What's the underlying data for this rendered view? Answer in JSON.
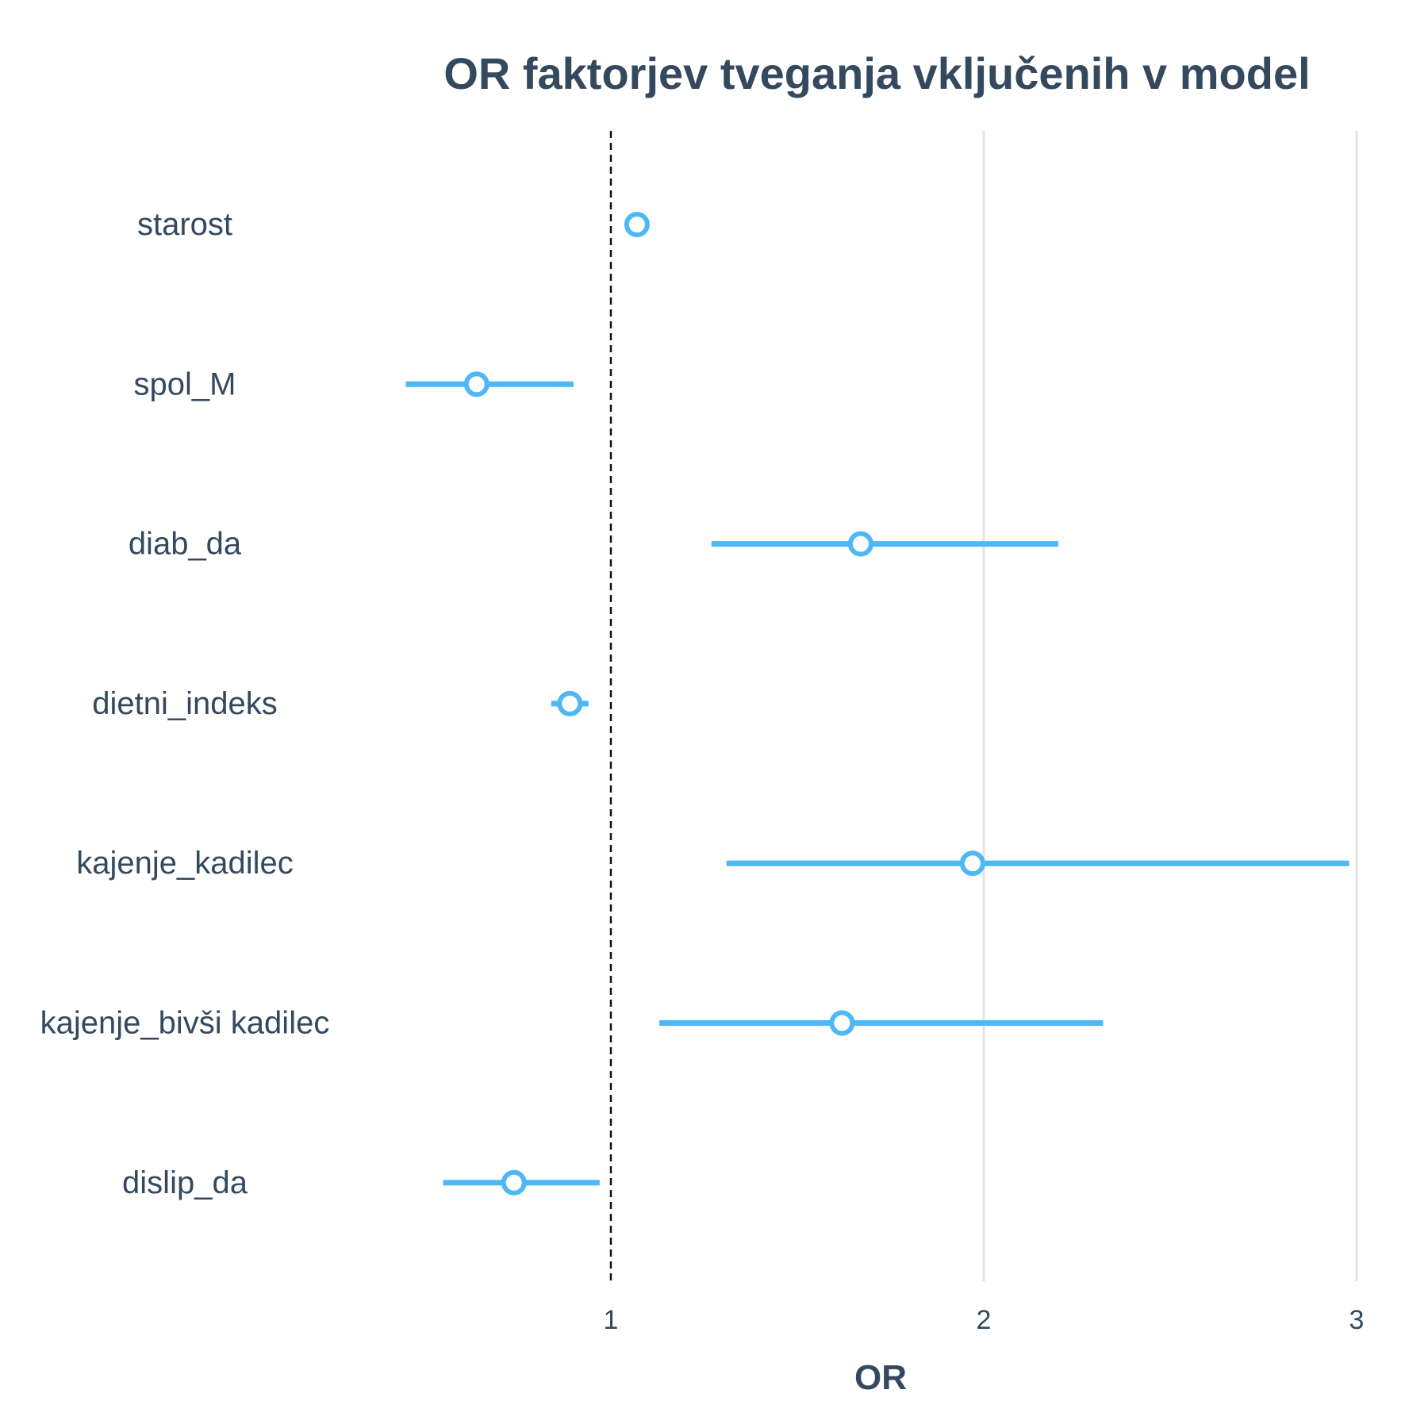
{
  "chart_data": {
    "type": "scatter",
    "title": "OR faktorjev tveganja vključenih v model",
    "xlabel": "OR",
    "ylabel": "",
    "xlim": [
      0,
      3
    ],
    "xticks": [
      1,
      2,
      3
    ],
    "reference_line": 1,
    "grid": "vertical",
    "legend": "none",
    "color": "#4db8f5",
    "rows": [
      {
        "label": "starost",
        "or": 1.07,
        "ci_low": 1.06,
        "ci_high": 1.08
      },
      {
        "label": "spol_M",
        "or": 0.64,
        "ci_low": 0.45,
        "ci_high": 0.9
      },
      {
        "label": "diab_da",
        "or": 1.67,
        "ci_low": 1.27,
        "ci_high": 2.2
      },
      {
        "label": "dietni_indeks",
        "or": 0.89,
        "ci_low": 0.84,
        "ci_high": 0.94
      },
      {
        "label": "kajenje_kadilec",
        "or": 1.97,
        "ci_low": 1.31,
        "ci_high": 2.98
      },
      {
        "label": "kajenje_bivši kadilec",
        "or": 1.62,
        "ci_low": 1.13,
        "ci_high": 2.32
      },
      {
        "label": "dislip_da",
        "or": 0.74,
        "ci_low": 0.55,
        "ci_high": 0.97
      }
    ]
  }
}
